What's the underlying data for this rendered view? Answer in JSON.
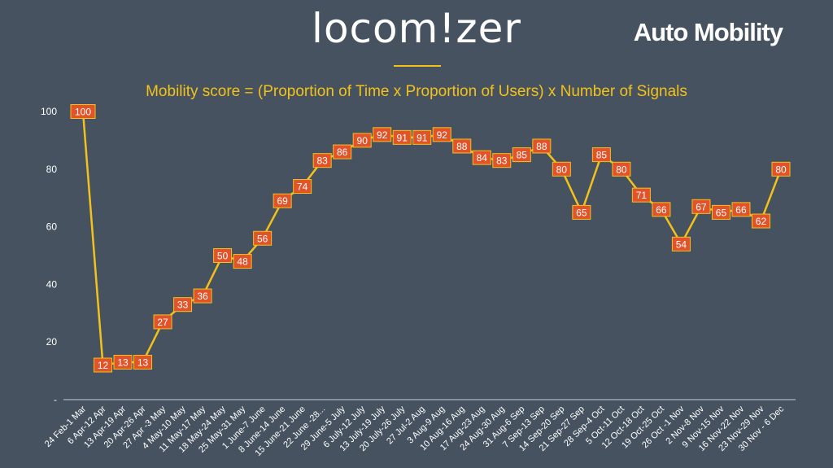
{
  "header": {
    "logo_text": "locom!zer",
    "title": "Auto Mobility"
  },
  "colors": {
    "background": "#465260",
    "line": "#f3c21a",
    "label_fill": "#e2532a",
    "label_stroke": "#f3c21a",
    "text": "#ffffff"
  },
  "chart_data": {
    "type": "line",
    "title": "Mobility score = (Proportion of Time x Proportion of Users) x Number of Signals",
    "xlabel": "",
    "ylabel": "",
    "ylim": [
      0,
      100
    ],
    "y_ticks": [
      "-",
      "20",
      "40",
      "60",
      "80",
      "100"
    ],
    "grid": false,
    "legend": "none",
    "categories": [
      "24 Feb-1 Mar",
      "6 Apr-12 Apr",
      "13 Apr-19 Apr",
      "20 Apr-26 Apr",
      "27 Apr -3 May",
      "4 May-10 May",
      "11 May-17 May",
      "18 May-24 May",
      "25 May-31 May",
      "1 June-7 June",
      "8 June-14 June",
      "15 June-21 June",
      "22 June -28...",
      "29 June-5 July",
      "6 July-12 July",
      "13 July-19 July",
      "20 July-26 July",
      "27 Jul-2 Aug",
      "3 Aug-9 Aug",
      "10 Aug-16 Aug",
      "17 Aug-23 Aug",
      "24 Aug-30 Aug",
      "31 Aug-6 Sep",
      "7 Sep-13 Sep",
      "14 Sep-20 Sep",
      "21 Sep-27 Sep",
      "28 Sep-4 Oct",
      "5 Oct-11 Oct",
      "12 Oct-18 Oct",
      "19 Oct-25 Oct",
      "26 Oct -1 Nov",
      "2 Nov-8 Nov",
      "9 Nov-15 Nov",
      "16 Nov-22 Nov",
      "23 Nov-29 Nov",
      "30 Nov - 6 Dec"
    ],
    "values": [
      100,
      12,
      13,
      13,
      27,
      33,
      36,
      50,
      48,
      56,
      69,
      74,
      83,
      86,
      90,
      92,
      91,
      91,
      92,
      88,
      84,
      83,
      85,
      88,
      80,
      65,
      85,
      80,
      71,
      66,
      54,
      67,
      65,
      66,
      62,
      80
    ]
  }
}
